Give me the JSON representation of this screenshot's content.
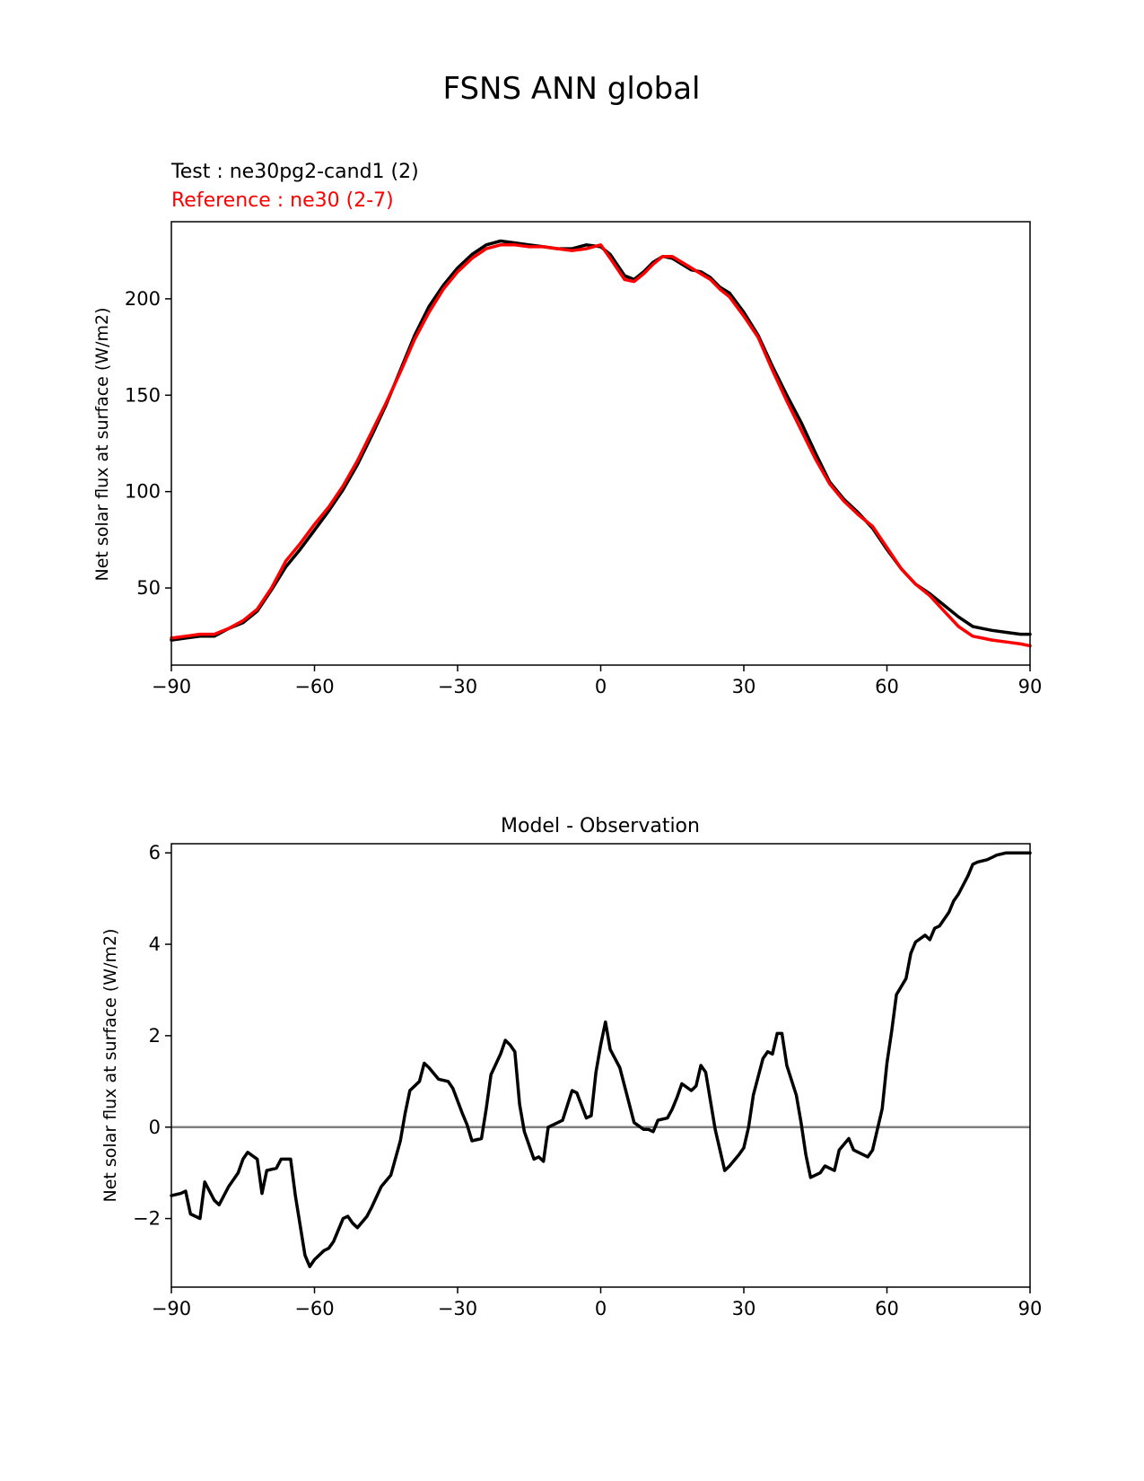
{
  "figure_title": "FSNS ANN global",
  "chart_data": [
    {
      "type": "line",
      "test_label": "Test : ne30pg2-cand1 (2)",
      "reference_label": "Reference : ne30 (2-7)",
      "xlabel": "",
      "ylabel": "Net solar flux at surface (W/m2)",
      "xlim": [
        -90,
        90
      ],
      "ylim": [
        10,
        240
      ],
      "xticks": [
        -90,
        -60,
        -30,
        0,
        30,
        60,
        90
      ],
      "xtick_labels": [
        "−90",
        "−60",
        "−30",
        "0",
        "30",
        "60",
        "90"
      ],
      "yticks": [
        50,
        100,
        150,
        200
      ],
      "ytick_labels": [
        "50",
        "100",
        "150",
        "200"
      ],
      "x": [
        -90,
        -87,
        -84,
        -81,
        -78,
        -75,
        -72,
        -69,
        -66,
        -63,
        -60,
        -57,
        -54,
        -51,
        -48,
        -45,
        -42,
        -39,
        -36,
        -33,
        -30,
        -27,
        -24,
        -21,
        -18,
        -15,
        -12,
        -9,
        -6,
        -3,
        0,
        2,
        5,
        7,
        9,
        11,
        13,
        15,
        17,
        19,
        21,
        23,
        25,
        27,
        30,
        33,
        36,
        39,
        42,
        45,
        48,
        51,
        54,
        57,
        60,
        63,
        66,
        69,
        72,
        75,
        78,
        80,
        82,
        85,
        88,
        90
      ],
      "series": [
        {
          "name": "Test : ne30pg2-cand1 (2)",
          "color": "#000000",
          "values": [
            23,
            24,
            25,
            25,
            29,
            32,
            38,
            49,
            61,
            70,
            80,
            90,
            101,
            114,
            129,
            145,
            163,
            181,
            196,
            207,
            216,
            223,
            228,
            230,
            229,
            228,
            227,
            226,
            226,
            228,
            227,
            223,
            212,
            210,
            214,
            219,
            222,
            221,
            218,
            215,
            214,
            211,
            206,
            203,
            193,
            181,
            165,
            150,
            136,
            120,
            105,
            96,
            89,
            81,
            70,
            60,
            52,
            47,
            41,
            35,
            30,
            29,
            28,
            27,
            26,
            26
          ]
        },
        {
          "name": "Reference : ne30 (2-7)",
          "color": "#ff0000",
          "values": [
            24,
            25,
            26,
            26,
            29,
            33,
            39,
            50,
            64,
            73,
            83,
            92,
            103,
            116,
            131,
            146,
            162,
            179,
            193,
            205,
            214,
            221,
            226,
            228,
            228,
            227,
            227,
            226,
            225,
            226,
            228,
            221,
            210,
            209,
            213,
            218,
            222,
            222,
            219,
            216,
            213,
            210,
            205,
            201,
            191,
            180,
            163,
            147,
            132,
            117,
            104,
            95,
            88,
            82,
            71,
            60,
            52,
            46,
            38,
            30,
            25,
            24,
            23,
            22,
            21,
            20
          ]
        }
      ]
    },
    {
      "type": "line",
      "title": "Model - Observation",
      "xlabel": "",
      "ylabel": "Net solar flux at surface (W/m2)",
      "xlim": [
        -90,
        90
      ],
      "ylim": [
        -3.5,
        6.2
      ],
      "xticks": [
        -90,
        -60,
        -30,
        0,
        30,
        60,
        90
      ],
      "xtick_labels": [
        "−90",
        "−60",
        "−30",
        "0",
        "30",
        "60",
        "90"
      ],
      "yticks": [
        -2,
        0,
        2,
        4,
        6
      ],
      "ytick_labels": [
        "−2",
        "0",
        "2",
        "4",
        "6"
      ],
      "zero_line_color": "#808080",
      "x": [
        -90,
        -88,
        -87,
        -86,
        -84,
        -83,
        -81,
        -80,
        -78,
        -76,
        -75,
        -74,
        -72,
        -71,
        -70,
        -68,
        -67,
        -65,
        -64,
        -62,
        -61,
        -60,
        -58,
        -57,
        -56,
        -54,
        -53,
        -52,
        -51,
        -49,
        -48,
        -46,
        -44,
        -42,
        -41,
        -40,
        -38,
        -37,
        -36,
        -34,
        -32,
        -31,
        -29,
        -28,
        -27,
        -25,
        -24,
        -23,
        -21,
        -20,
        -19,
        -18,
        -17,
        -16,
        -14,
        -13,
        -12,
        -11,
        -9,
        -8,
        -6,
        -5,
        -3,
        -2,
        -1,
        0,
        1,
        2,
        4,
        5,
        6,
        7,
        9,
        10,
        11,
        12,
        14,
        15,
        16,
        17,
        19,
        20,
        21,
        22,
        24,
        25,
        26,
        27,
        29,
        30,
        31,
        32,
        34,
        35,
        36,
        37,
        38,
        39,
        41,
        42,
        43,
        44,
        46,
        47,
        48,
        49,
        50,
        52,
        53,
        54,
        56,
        57,
        59,
        60,
        61,
        62,
        64,
        65,
        66,
        68,
        69,
        70,
        71,
        73,
        74,
        75,
        77,
        78,
        79,
        81,
        82,
        83,
        85,
        86,
        87,
        88,
        89,
        90
      ],
      "series": [
        {
          "name": "Model - Observation",
          "color": "#000000",
          "values": [
            -1.5,
            -1.45,
            -1.4,
            -1.9,
            -2.0,
            -1.2,
            -1.6,
            -1.7,
            -1.3,
            -1.0,
            -0.7,
            -0.55,
            -0.7,
            -1.45,
            -0.95,
            -0.9,
            -0.7,
            -0.7,
            -1.5,
            -2.8,
            -3.05,
            -2.9,
            -2.7,
            -2.65,
            -2.5,
            -2.0,
            -1.95,
            -2.1,
            -2.2,
            -1.95,
            -1.75,
            -1.3,
            -1.05,
            -0.3,
            0.3,
            0.8,
            1.0,
            1.4,
            1.3,
            1.05,
            1.0,
            0.85,
            0.3,
            0.05,
            -0.3,
            -0.25,
            0.4,
            1.15,
            1.6,
            1.9,
            1.8,
            1.65,
            0.5,
            -0.1,
            -0.7,
            -0.65,
            -0.75,
            0.0,
            0.1,
            0.15,
            0.8,
            0.75,
            0.2,
            0.25,
            1.2,
            1.8,
            2.3,
            1.7,
            1.3,
            0.9,
            0.5,
            0.1,
            -0.05,
            -0.05,
            -0.1,
            0.15,
            0.2,
            0.4,
            0.65,
            0.95,
            0.8,
            0.9,
            1.35,
            1.2,
            -0.05,
            -0.5,
            -0.95,
            -0.85,
            -0.6,
            -0.45,
            0.0,
            0.7,
            1.5,
            1.65,
            1.6,
            2.05,
            2.05,
            1.35,
            0.7,
            0.1,
            -0.6,
            -1.1,
            -1.0,
            -0.85,
            -0.9,
            -0.95,
            -0.5,
            -0.25,
            -0.5,
            -0.55,
            -0.65,
            -0.5,
            0.4,
            1.4,
            2.1,
            2.9,
            3.25,
            3.8,
            4.05,
            4.2,
            4.1,
            4.35,
            4.4,
            4.7,
            4.95,
            5.1,
            5.5,
            5.75,
            5.8,
            5.85,
            5.9,
            5.95,
            6.0,
            6.0,
            6.0,
            6.0,
            6.0,
            6.0
          ]
        }
      ]
    }
  ]
}
